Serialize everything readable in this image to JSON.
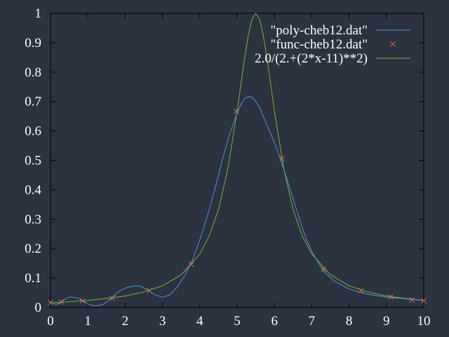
{
  "chart_data": {
    "type": "line",
    "title": "",
    "xlabel": "",
    "ylabel": "",
    "xlim": [
      0,
      10
    ],
    "ylim": [
      0,
      1
    ],
    "x_ticks": [
      "0",
      "1",
      "2",
      "3",
      "4",
      "5",
      "6",
      "7",
      "8",
      "9",
      "10"
    ],
    "y_ticks": [
      "0",
      "0.1",
      "0.2",
      "0.3",
      "0.4",
      "0.5",
      "0.6",
      "0.7",
      "0.8",
      "0.9",
      "1"
    ],
    "grid": false,
    "legend_position": "top-right",
    "background_color": "#2b3240",
    "series": [
      {
        "name": "\"poly-cheb12.dat\"",
        "style": "line",
        "color": "#3d9be9",
        "x": [
          0,
          0.15,
          0.3,
          0.45,
          0.55,
          0.7,
          0.85,
          1.0,
          1.2,
          1.4,
          1.6,
          1.8,
          2.0,
          2.2,
          2.4,
          2.6,
          2.8,
          3.0,
          3.2,
          3.4,
          3.6,
          3.8,
          4.0,
          4.2,
          4.4,
          4.6,
          4.8,
          5.0,
          5.1,
          5.2,
          5.3,
          5.4,
          5.5,
          5.6,
          5.8,
          6.0,
          6.2,
          6.4,
          6.6,
          6.8,
          7.0,
          7.3,
          7.6,
          8.0,
          8.4,
          8.8,
          9.1,
          9.4,
          9.7,
          10.0
        ],
        "y": [
          0.02,
          0.01,
          0.02,
          0.033,
          0.036,
          0.033,
          0.024,
          0.012,
          0.005,
          0.01,
          0.028,
          0.052,
          0.066,
          0.073,
          0.073,
          0.06,
          0.043,
          0.035,
          0.043,
          0.07,
          0.11,
          0.16,
          0.23,
          0.31,
          0.4,
          0.5,
          0.59,
          0.66,
          0.69,
          0.71,
          0.717,
          0.715,
          0.7,
          0.68,
          0.62,
          0.56,
          0.49,
          0.41,
          0.33,
          0.25,
          0.19,
          0.125,
          0.09,
          0.063,
          0.048,
          0.039,
          0.034,
          0.031,
          0.027,
          0.024
        ]
      },
      {
        "name": "\"func-cheb12.dat\"",
        "style": "points",
        "color": "#e8683a",
        "x": [
          0.0,
          0.29,
          0.86,
          1.66,
          2.65,
          3.77,
          4.98,
          6.2,
          7.32,
          8.32,
          9.11,
          9.68,
          10.0
        ],
        "y": [
          0.017,
          0.019,
          0.023,
          0.032,
          0.057,
          0.147,
          0.667,
          0.506,
          0.13,
          0.058,
          0.036,
          0.026,
          0.023
        ]
      },
      {
        "name": "2.0/(2.+(2*x-11)**2)",
        "style": "line",
        "color": "#76b82a",
        "x": [
          0,
          0.5,
          1.0,
          1.5,
          2.0,
          2.5,
          3.0,
          3.5,
          4.0,
          4.25,
          4.5,
          4.75,
          5.0,
          5.1,
          5.2,
          5.3,
          5.4,
          5.5,
          5.6,
          5.7,
          5.8,
          5.9,
          6.0,
          6.25,
          6.5,
          6.75,
          7.0,
          7.5,
          8.0,
          8.5,
          9.0,
          9.5,
          10.0
        ],
        "y": [
          0.016,
          0.02,
          0.024,
          0.031,
          0.039,
          0.053,
          0.074,
          0.111,
          0.182,
          0.242,
          0.333,
          0.471,
          0.667,
          0.758,
          0.847,
          0.926,
          0.98,
          1.0,
          0.98,
          0.926,
          0.847,
          0.758,
          0.667,
          0.471,
          0.333,
          0.242,
          0.182,
          0.111,
          0.074,
          0.053,
          0.039,
          0.031,
          0.024
        ]
      }
    ]
  }
}
